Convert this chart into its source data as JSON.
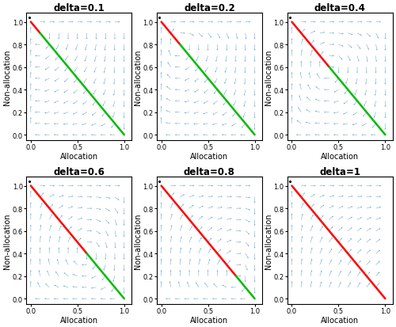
{
  "deltas": [
    0.1,
    0.2,
    0.4,
    0.6,
    0.8,
    1.0
  ],
  "delta_labels": [
    "delta=0.1",
    "delta=0.2",
    "delta=0.4",
    "delta=0.6",
    "delta=0.8",
    "delta=1"
  ],
  "grid_n": 11,
  "xlabel": "Allocation",
  "ylabel": "Non-allocation",
  "arrow_color": "#3a8fc7",
  "arrow_color2": "#1a5fa0",
  "red_color": "#ff0000",
  "green_color": "#00bb00",
  "bg_color": "#ffffff",
  "title_fontsize": 8.5,
  "label_fontsize": 7,
  "tick_fontsize": 6
}
